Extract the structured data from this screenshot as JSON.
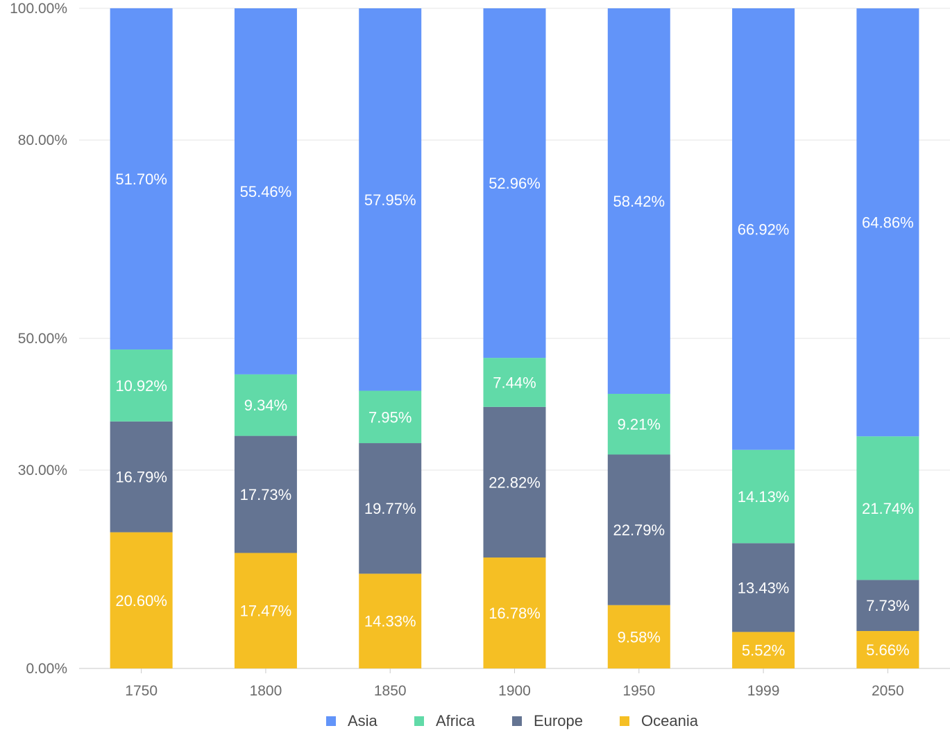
{
  "chart_data": {
    "type": "bar",
    "stacked": true,
    "categories": [
      "1750",
      "1800",
      "1850",
      "1900",
      "1950",
      "1999",
      "2050"
    ],
    "series": [
      {
        "name": "Oceania",
        "color": "#f5bf24",
        "values": [
          20.6,
          17.47,
          14.33,
          16.78,
          9.58,
          5.52,
          5.66
        ],
        "labels": [
          "20.60%",
          "17.47%",
          "14.33%",
          "16.78%",
          "9.58%",
          "5.52%",
          "5.66%"
        ]
      },
      {
        "name": "Europe",
        "color": "#647492",
        "values": [
          16.79,
          17.73,
          19.77,
          22.82,
          22.79,
          13.43,
          7.73
        ],
        "labels": [
          "16.79%",
          "17.73%",
          "19.77%",
          "22.82%",
          "22.79%",
          "13.43%",
          "7.73%"
        ]
      },
      {
        "name": "Africa",
        "color": "#61daa8",
        "values": [
          10.92,
          9.34,
          7.95,
          7.44,
          9.21,
          14.13,
          21.74
        ],
        "labels": [
          "10.92%",
          "9.34%",
          "7.95%",
          "7.44%",
          "9.21%",
          "14.13%",
          "21.74%"
        ]
      },
      {
        "name": "Asia",
        "color": "#6294f9",
        "values": [
          51.7,
          55.46,
          57.95,
          52.96,
          58.42,
          66.92,
          64.86
        ],
        "labels": [
          "51.70%",
          "55.46%",
          "57.95%",
          "52.96%",
          "58.42%",
          "66.92%",
          "64.86%"
        ]
      }
    ],
    "yticks": [
      {
        "value": 0,
        "label": "0.00%"
      },
      {
        "value": 30,
        "label": "30.00%"
      },
      {
        "value": 50,
        "label": "50.00%"
      },
      {
        "value": 80,
        "label": "80.00%"
      },
      {
        "value": 100,
        "label": "100.00%"
      }
    ],
    "ylim": [
      0,
      100
    ],
    "legend": {
      "position": "bottom",
      "order": [
        "Asia",
        "Africa",
        "Europe",
        "Oceania"
      ]
    },
    "grid": true,
    "title": "",
    "xlabel": "",
    "ylabel": ""
  }
}
